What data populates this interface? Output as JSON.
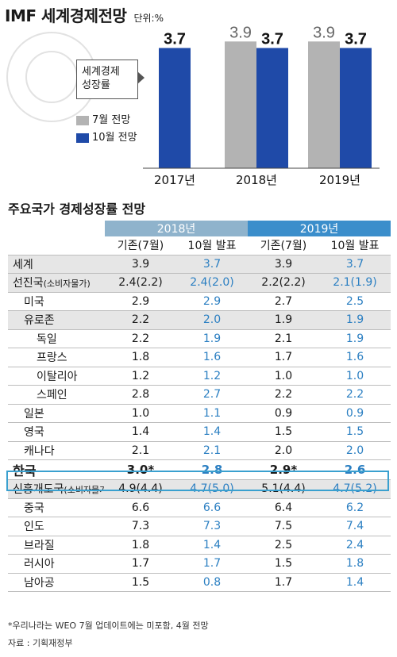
{
  "header": {
    "title": "IMF 세계경제전망",
    "unit": "단위:%"
  },
  "legend": {
    "callout_line1": "세계경제",
    "callout_line2": "성장률",
    "july": "7월 전망",
    "october": "10월 전망"
  },
  "chart_data": {
    "type": "bar",
    "title": "IMF 세계경제전망",
    "categories": [
      "2017년",
      "2018년",
      "2019년"
    ],
    "series": [
      {
        "name": "7월 전망",
        "values": [
          null,
          3.9,
          3.9
        ]
      },
      {
        "name": "10월 전망",
        "values": [
          3.7,
          3.7,
          3.7
        ]
      }
    ],
    "colors": {
      "july": "#b3b3b3",
      "october": "#1f4aa8"
    },
    "ylim": [
      0,
      4.2
    ],
    "xlabel": "",
    "ylabel": ""
  },
  "table": {
    "title": "주요국가 경제성장률 전망",
    "year_headers": [
      "2018년",
      "2019년"
    ],
    "sub_headers": [
      "기존(7월)",
      "10월 발표",
      "기존(7월)",
      "10월 발표"
    ],
    "rows": [
      {
        "label": "세계",
        "note": "",
        "v": [
          "3.9",
          "3.7",
          "3.9",
          "3.7"
        ]
      },
      {
        "label": "선진국",
        "note": "(소비자물가)",
        "v": [
          "2.4(2.2)",
          "2.4(2.0)",
          "2.2(2.2)",
          "2.1(1.9)"
        ]
      },
      {
        "label": "미국",
        "note": "",
        "v": [
          "2.9",
          "2.9",
          "2.7",
          "2.5"
        ]
      },
      {
        "label": "유로존",
        "note": "",
        "v": [
          "2.2",
          "2.0",
          "1.9",
          "1.9"
        ]
      },
      {
        "label": "독일",
        "note": "",
        "v": [
          "2.2",
          "1.9",
          "2.1",
          "1.9"
        ]
      },
      {
        "label": "프랑스",
        "note": "",
        "v": [
          "1.8",
          "1.6",
          "1.7",
          "1.6"
        ]
      },
      {
        "label": "이탈리아",
        "note": "",
        "v": [
          "1.2",
          "1.2",
          "1.0",
          "1.0"
        ]
      },
      {
        "label": "스페인",
        "note": "",
        "v": [
          "2.8",
          "2.7",
          "2.2",
          "2.2"
        ]
      },
      {
        "label": "일본",
        "note": "",
        "v": [
          "1.0",
          "1.1",
          "0.9",
          "0.9"
        ]
      },
      {
        "label": "영국",
        "note": "",
        "v": [
          "1.4",
          "1.4",
          "1.5",
          "1.5"
        ]
      },
      {
        "label": "캐나다",
        "note": "",
        "v": [
          "2.1",
          "2.1",
          "2.0",
          "2.0"
        ]
      },
      {
        "label": "한국",
        "note": "",
        "v": [
          "3.0*",
          "2.8",
          "2.9*",
          "2.6"
        ]
      },
      {
        "label": "신흥개도국",
        "note": "(소비자물가)",
        "v": [
          "4.9(4.4)",
          "4.7(5.0)",
          "5.1(4.4)",
          "4.7(5.2)"
        ]
      },
      {
        "label": "중국",
        "note": "",
        "v": [
          "6.6",
          "6.6",
          "6.4",
          "6.2"
        ]
      },
      {
        "label": "인도",
        "note": "",
        "v": [
          "7.3",
          "7.3",
          "7.5",
          "7.4"
        ]
      },
      {
        "label": "브라질",
        "note": "",
        "v": [
          "1.8",
          "1.4",
          "2.5",
          "2.4"
        ]
      },
      {
        "label": "러시아",
        "note": "",
        "v": [
          "1.7",
          "1.7",
          "1.5",
          "1.8"
        ]
      },
      {
        "label": "남아공",
        "note": "",
        "v": [
          "1.5",
          "0.8",
          "1.7",
          "1.4"
        ]
      }
    ]
  },
  "footnote": "*우리나라는 WEO 7월 업데이트에는 미포함, 4월 전망",
  "source": "자료 : 기획재정부"
}
